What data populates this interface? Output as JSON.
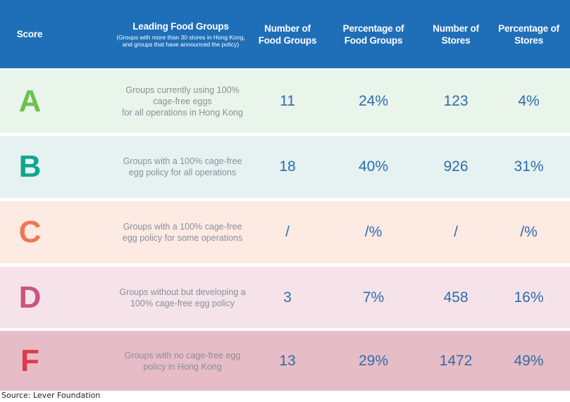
{
  "header": {
    "score": "Score",
    "leading": "Leading Food Groups",
    "leading_sub_1": "(Groups with more than 30 stores in Hong Kong,",
    "leading_sub_2": "and groups that have announced the policy)",
    "num_groups_1": "Number of",
    "num_groups_2": "Food Groups",
    "pct_groups_1": "Percentage of",
    "pct_groups_2": "Food Groups",
    "num_stores_1": "Number of",
    "num_stores_2": "Stores",
    "pct_stores_1": "Percentage of",
    "pct_stores_2": "Stores"
  },
  "rows": [
    {
      "score": "A",
      "desc": [
        "Groups currently using 100%",
        "cage-free eggs",
        "for all operations in Hong Kong"
      ],
      "num_groups": "11",
      "pct_groups": "24%",
      "num_stores": "123",
      "pct_stores": "4%",
      "bg": "#e9f4eb",
      "letter_color": "#6cc24a"
    },
    {
      "score": "B",
      "desc": [
        "Groups with a 100% cage-free",
        "egg policy for all operations"
      ],
      "num_groups": "18",
      "pct_groups": "40%",
      "num_stores": "926",
      "pct_stores": "31%",
      "bg": "#e6f2f1",
      "letter_color": "#11a58f"
    },
    {
      "score": "C",
      "desc": [
        "Groups with a 100% cage-free",
        "egg policy for some operations"
      ],
      "num_groups": "/",
      "pct_groups": "/%",
      "num_stores": "/",
      "pct_stores": "/%",
      "bg": "#fdeae3",
      "letter_color": "#ee7856"
    },
    {
      "score": "D",
      "desc": [
        "Groups without but developing a",
        "100% cage-free egg policy"
      ],
      "num_groups": "3",
      "pct_groups": "7%",
      "num_stores": "458",
      "pct_stores": "16%",
      "bg": "#f5e3e9",
      "letter_color": "#c8557f"
    },
    {
      "score": "F",
      "desc": [
        "Groups with no cage-free egg",
        "policy in Hong Kong"
      ],
      "num_groups": "13",
      "pct_groups": "29%",
      "num_stores": "1472",
      "pct_stores": "49%",
      "bg": "#e6bcc6",
      "letter_color": "#e03a4c"
    }
  ],
  "source": "Source: Lever Foundation"
}
